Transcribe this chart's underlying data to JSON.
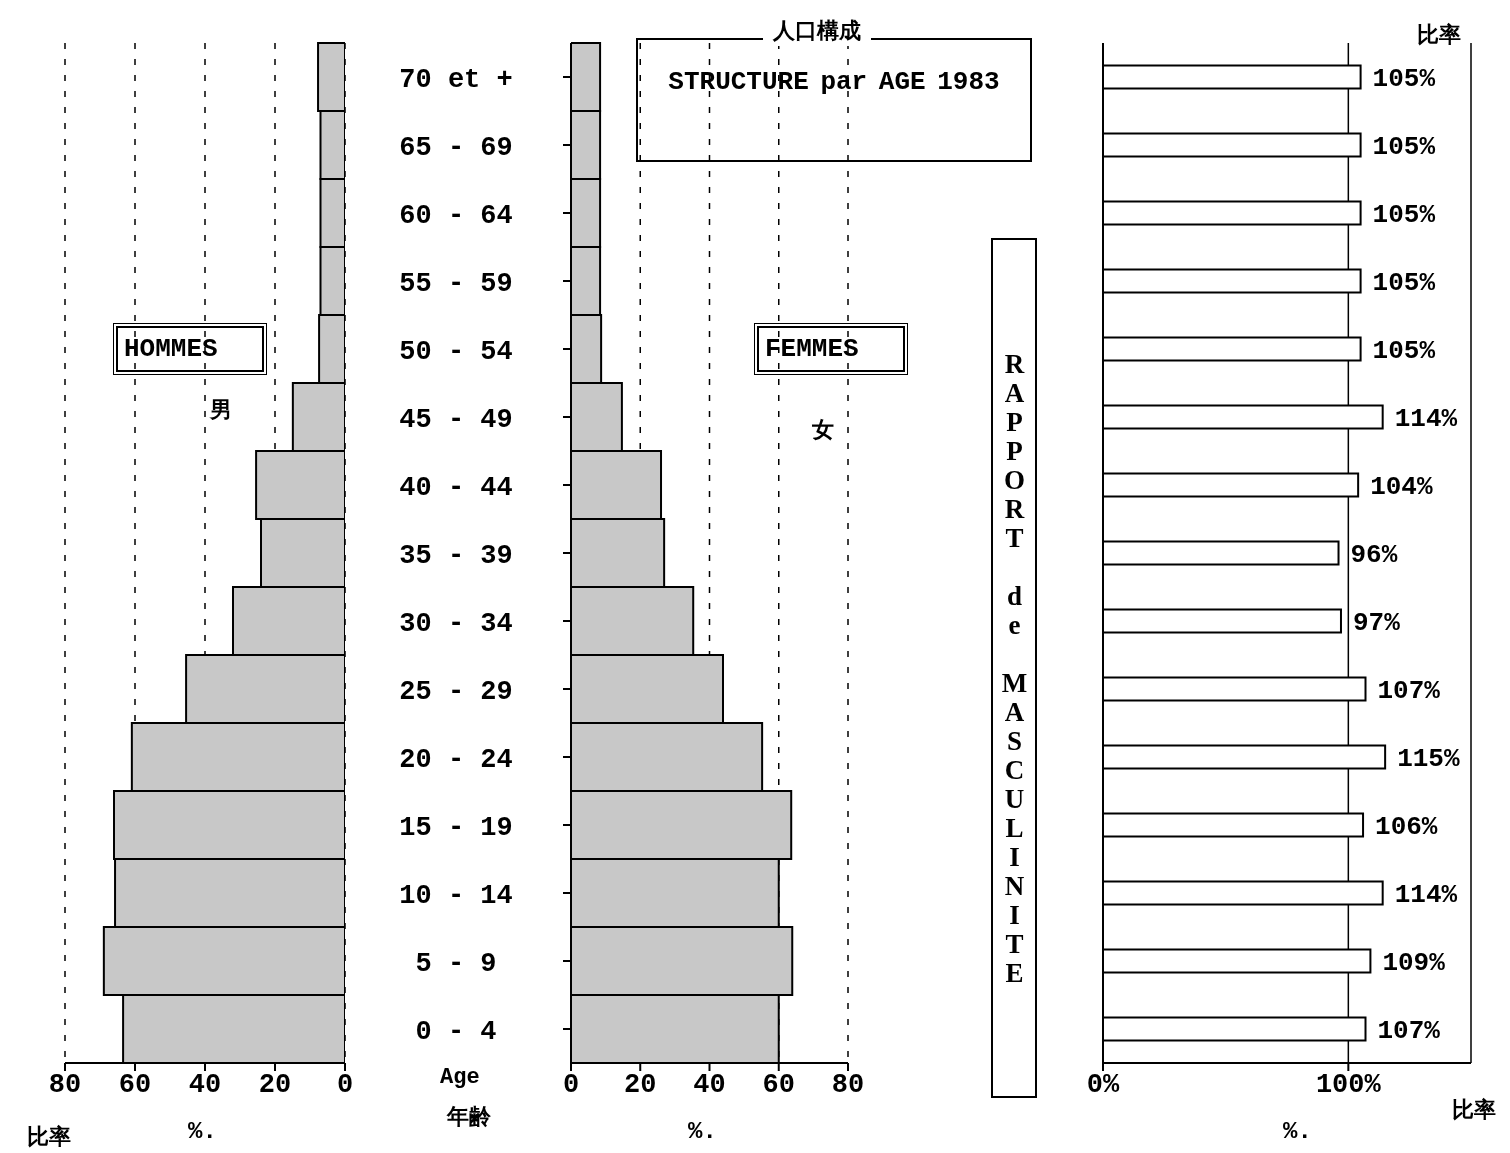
{
  "chart_data": [
    {
      "type": "bar",
      "orientation": "horizontal",
      "categories": [
        null,
        null,
        null,
        null,
        null,
        null,
        null,
        null,
        null,
        null,
        null,
        null,
        null,
        null,
        null
      ],
      "values": [
        7.7,
        7,
        7,
        7,
        7.4,
        14.9,
        25.4,
        24,
        32,
        45.4,
        60.9,
        66,
        65.7,
        68.9,
        63.4
      ],
      "color": "#c8c8c8",
      "xlim": [
        80,
        0
      ],
      "xticks": [
        80,
        60,
        40,
        20,
        0
      ],
      "xlabel": "%.",
      "grid": "x",
      "tick_labels": "x",
      "annotations": [
        "HOMMES",
        "男",
        "比率"
      ]
    },
    {
      "type": "bar",
      "orientation": "horizontal",
      "title": "STRUCTURE par AGE 1983",
      "subtitle": "人口構成",
      "categories": [
        "70 et +",
        "65 - 69",
        "60 - 64",
        "55 - 59",
        "50 - 54",
        "45 - 49",
        "40 - 44",
        "35 - 39",
        "30 - 34",
        "25 - 29",
        "20 - 24",
        "15 - 19",
        "10 - 14",
        "5 - 9",
        "0 - 4"
      ],
      "values": [
        8.4,
        8.4,
        8.4,
        8.4,
        8.7,
        14.7,
        26,
        26.9,
        35.3,
        43.9,
        55.2,
        63.6,
        60,
        63.9,
        60
      ],
      "color": "#c8c8c8",
      "xlim": [
        0,
        80
      ],
      "xticks": [
        0,
        20,
        40,
        60,
        80
      ],
      "xlabel": "%.",
      "grid": "x",
      "annotations": [
        "FEMMES",
        "女",
        "Age",
        "年齢"
      ]
    },
    {
      "type": "bar",
      "orientation": "horizontal",
      "title": "RAPPORT de MASCULINITE",
      "categories": [
        null,
        null,
        null,
        null,
        null,
        null,
        null,
        null,
        null,
        null,
        null,
        null,
        null,
        null,
        null
      ],
      "values": [
        105,
        105,
        105,
        105,
        105,
        114,
        104,
        96,
        97,
        107,
        115,
        106,
        114,
        109,
        107
      ],
      "color": "#ffffff",
      "value_labels": [
        "105%",
        "105%",
        "105%",
        "105%",
        "105%",
        "114%",
        "104%",
        "96%",
        "97%",
        "107%",
        "115%",
        "106%",
        "114%",
        "109%",
        "107%"
      ],
      "xlim": [
        0,
        150
      ],
      "xticks": [
        {
          "value": 0,
          "label": "0%"
        },
        {
          "value": 100,
          "label": "100%"
        }
      ],
      "xlabel": "%.",
      "grid": "x",
      "tick_labels": "x",
      "annotations": [
        "比率",
        "比率"
      ]
    }
  ]
}
